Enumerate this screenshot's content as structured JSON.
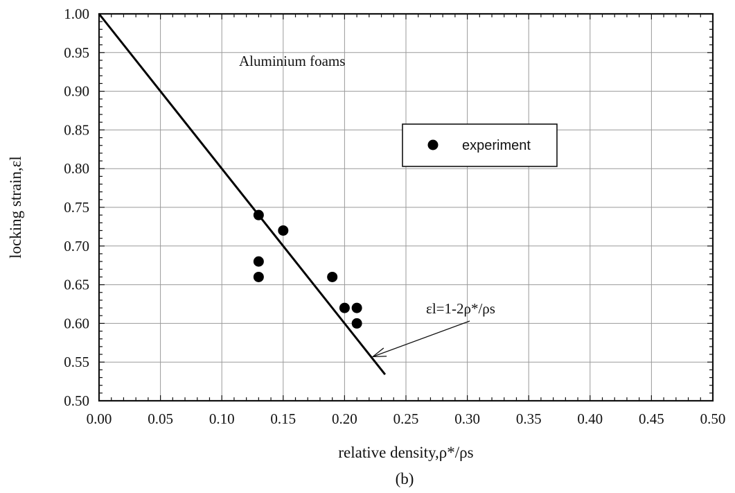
{
  "chart_data": {
    "type": "scatter",
    "title": "",
    "annotation": "Aluminium foams",
    "caption": "(b)",
    "xlabel": "relative density,ρ*/ρs",
    "ylabel": "locking strain,εl",
    "xlim": [
      0.0,
      0.5
    ],
    "ylim": [
      0.5,
      1.0
    ],
    "grid": true,
    "x_ticks": [
      "0.00",
      "0.05",
      "0.10",
      "0.15",
      "0.20",
      "0.25",
      "0.30",
      "0.35",
      "0.40",
      "0.45",
      "0.50"
    ],
    "y_ticks": [
      "0.50",
      "0.55",
      "0.60",
      "0.65",
      "0.70",
      "0.75",
      "0.80",
      "0.85",
      "0.90",
      "0.95",
      "1.00"
    ],
    "legend_position": "upper-right",
    "series": [
      {
        "name": "experiment",
        "marker": "filled-circle",
        "points": [
          {
            "x": 0.13,
            "y": 0.74
          },
          {
            "x": 0.13,
            "y": 0.68
          },
          {
            "x": 0.13,
            "y": 0.66
          },
          {
            "x": 0.15,
            "y": 0.72
          },
          {
            "x": 0.19,
            "y": 0.66
          },
          {
            "x": 0.2,
            "y": 0.62
          },
          {
            "x": 0.21,
            "y": 0.62
          },
          {
            "x": 0.21,
            "y": 0.6
          }
        ]
      }
    ],
    "model_line": {
      "label": "εl=1-2ρ*/ρs",
      "x": [
        0.0,
        0.233
      ],
      "y": [
        1.0,
        0.534
      ]
    }
  }
}
